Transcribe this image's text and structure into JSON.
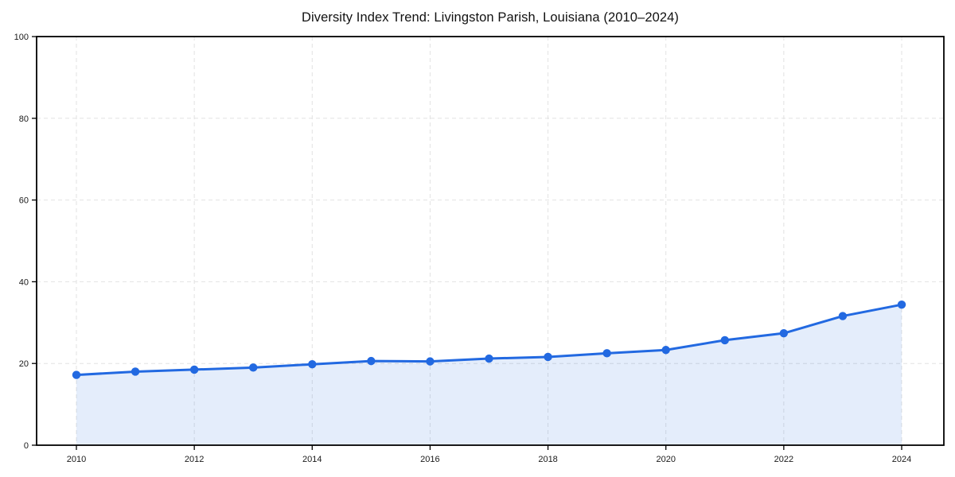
{
  "chart_data": {
    "type": "area",
    "title": "Diversity Index Trend: Livingston Parish, Louisiana (2010–2024)",
    "x": [
      2010,
      2011,
      2012,
      2013,
      2014,
      2015,
      2016,
      2017,
      2018,
      2019,
      2020,
      2021,
      2022,
      2023,
      2024
    ],
    "series": [
      {
        "name": "Diversity Index",
        "values": [
          17.2,
          18.0,
          18.5,
          19.0,
          19.8,
          20.6,
          20.5,
          21.2,
          21.6,
          22.5,
          23.3,
          25.7,
          27.4,
          31.6,
          34.4
        ]
      }
    ],
    "xlabel": "",
    "ylabel": "",
    "ylim": [
      0,
      100
    ],
    "y_ticks": [
      0,
      20,
      40,
      60,
      80,
      100
    ],
    "x_ticks": [
      2010,
      2012,
      2014,
      2016,
      2018,
      2020,
      2022,
      2024
    ],
    "grid": "dashed both axes",
    "legend": "none",
    "colors": {
      "line": "#2269e1",
      "marker": "#2269e1",
      "fill": "rgba(34,105,225,0.12)",
      "gridline": "#e2e2e2",
      "spine": "#000000",
      "tick_label": "#1a1a1a",
      "title": "#111111",
      "background": "#ffffff"
    },
    "marker_style": "filled circle",
    "line_width": 3
  }
}
